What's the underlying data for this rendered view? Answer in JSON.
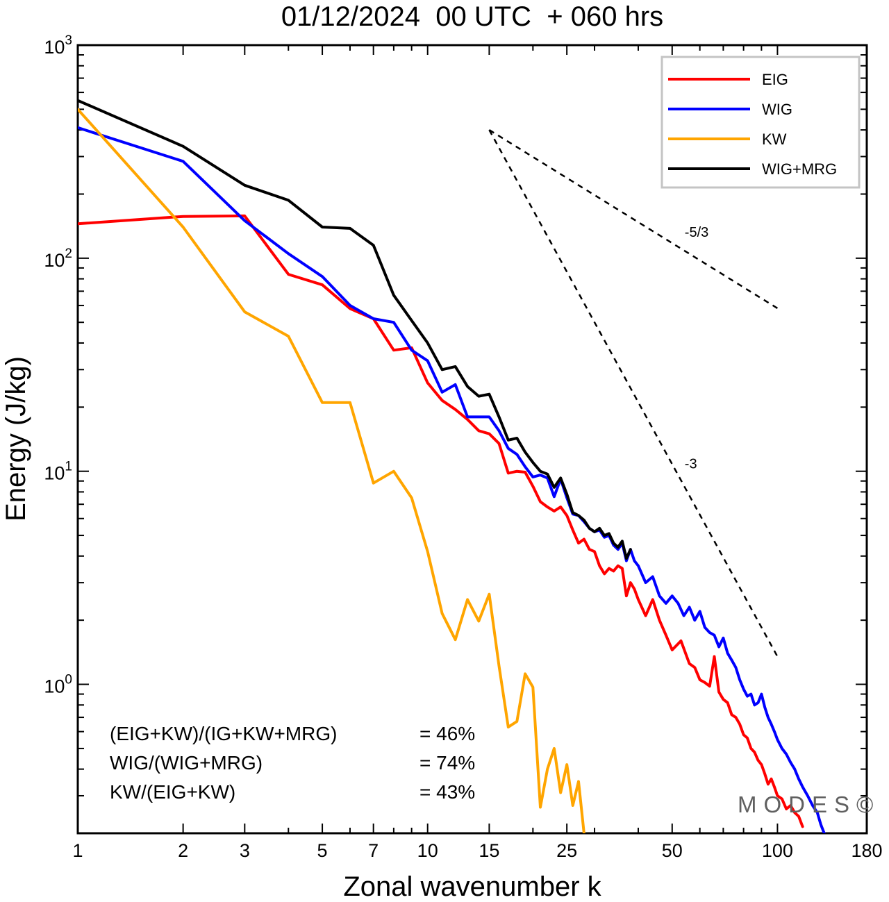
{
  "chart_data": {
    "type": "line",
    "title": "01/12/2024  00 UTC  + 060 hrs",
    "xlabel": "Zonal wavenumber k",
    "ylabel": "Energy (J/kg)",
    "x_scale": "log",
    "y_scale": "log",
    "xlim": [
      1,
      180
    ],
    "ylim": [
      0.2,
      1000
    ],
    "x_ticks": [
      {
        "value": 1,
        "label": "1"
      },
      {
        "value": 2,
        "label": "2"
      },
      {
        "value": 3,
        "label": "3"
      },
      {
        "value": 5,
        "label": "5"
      },
      {
        "value": 7,
        "label": "7"
      },
      {
        "value": 10,
        "label": "10"
      },
      {
        "value": 15,
        "label": "15"
      },
      {
        "value": 25,
        "label": "25"
      },
      {
        "value": 50,
        "label": "50"
      },
      {
        "value": 100,
        "label": "100"
      },
      {
        "value": 180,
        "label": "180"
      }
    ],
    "y_ticks": [
      {
        "value": 1,
        "base": "10",
        "exp": "0"
      },
      {
        "value": 10,
        "base": "10",
        "exp": "1"
      },
      {
        "value": 100,
        "base": "10",
        "exp": "2"
      },
      {
        "value": 1000,
        "base": "10",
        "exp": "3"
      }
    ],
    "grid": false,
    "legend_position": "top-right",
    "series": [
      {
        "name": "EIG",
        "color": "#ff0000",
        "points": [
          [
            1,
            145
          ],
          [
            2,
            157
          ],
          [
            3,
            158
          ],
          [
            4,
            84
          ],
          [
            5,
            75
          ],
          [
            6,
            58
          ],
          [
            7,
            52
          ],
          [
            8,
            37
          ],
          [
            9,
            38
          ],
          [
            10,
            26
          ],
          [
            11,
            21.5
          ],
          [
            12,
            19.5
          ],
          [
            13,
            17.5
          ],
          [
            14,
            15.5
          ],
          [
            15,
            15
          ],
          [
            16,
            13.5
          ],
          [
            17,
            9.8
          ],
          [
            18,
            10
          ],
          [
            19,
            9.9
          ],
          [
            20,
            8.5
          ],
          [
            21,
            7.2
          ],
          [
            22,
            6.8
          ],
          [
            23,
            6.5
          ],
          [
            24,
            6.8
          ],
          [
            25,
            6.2
          ],
          [
            26,
            5.3
          ],
          [
            27,
            4.6
          ],
          [
            28,
            4.8
          ],
          [
            29,
            4.3
          ],
          [
            30,
            4.2
          ],
          [
            31,
            3.6
          ],
          [
            32,
            3.3
          ],
          [
            33,
            3.5
          ],
          [
            34,
            3.4
          ],
          [
            35,
            3.6
          ],
          [
            36,
            3.5
          ],
          [
            37,
            2.6
          ],
          [
            38,
            3.0
          ],
          [
            39,
            2.8
          ],
          [
            40,
            2.5
          ],
          [
            42,
            2.1
          ],
          [
            44,
            2.5
          ],
          [
            46,
            2.0
          ],
          [
            48,
            1.7
          ],
          [
            50,
            1.45
          ],
          [
            53,
            1.6
          ],
          [
            56,
            1.25
          ],
          [
            58,
            1.2
          ],
          [
            60,
            1.05
          ],
          [
            62,
            1.02
          ],
          [
            64,
            0.98
          ],
          [
            66,
            1.35
          ],
          [
            68,
            0.92
          ],
          [
            70,
            0.85
          ],
          [
            72,
            0.82
          ],
          [
            74,
            0.72
          ],
          [
            76,
            0.7
          ],
          [
            78,
            0.65
          ],
          [
            80,
            0.58
          ],
          [
            82,
            0.56
          ],
          [
            84,
            0.5
          ],
          [
            86,
            0.48
          ],
          [
            88,
            0.44
          ],
          [
            90,
            0.42
          ],
          [
            92,
            0.38
          ],
          [
            94,
            0.34
          ],
          [
            96,
            0.36
          ],
          [
            98,
            0.33
          ],
          [
            100,
            0.3
          ],
          [
            103,
            0.29
          ],
          [
            106,
            0.26
          ],
          [
            109,
            0.27
          ],
          [
            112,
            0.25
          ],
          [
            115,
            0.24
          ],
          [
            118,
            0.215
          ]
        ]
      },
      {
        "name": "WIG",
        "color": "#0000ff",
        "points": [
          [
            1,
            410
          ],
          [
            2,
            285
          ],
          [
            3,
            150
          ],
          [
            4,
            105
          ],
          [
            5,
            82
          ],
          [
            6,
            60
          ],
          [
            7,
            52
          ],
          [
            8,
            50
          ],
          [
            9,
            37
          ],
          [
            10,
            33
          ],
          [
            11,
            23.5
          ],
          [
            12,
            25.5
          ],
          [
            13,
            18
          ],
          [
            14,
            18
          ],
          [
            15,
            18
          ],
          [
            16,
            15.5
          ],
          [
            17,
            12.8
          ],
          [
            18,
            12
          ],
          [
            19,
            10.5
          ],
          [
            20,
            9.4
          ],
          [
            21,
            9.6
          ],
          [
            22,
            9.3
          ],
          [
            23,
            7.6
          ],
          [
            24,
            9.2
          ],
          [
            25,
            7.5
          ],
          [
            26,
            6.3
          ],
          [
            27,
            6.2
          ],
          [
            28,
            5.8
          ],
          [
            29,
            5.4
          ],
          [
            30,
            5.2
          ],
          [
            31,
            5.3
          ],
          [
            32,
            4.9
          ],
          [
            33,
            5.0
          ],
          [
            34,
            4.5
          ],
          [
            35,
            4.3
          ],
          [
            36,
            4.6
          ],
          [
            37,
            3.8
          ],
          [
            38,
            4.3
          ],
          [
            39,
            3.8
          ],
          [
            40,
            3.6
          ],
          [
            42,
            3.0
          ],
          [
            44,
            3.2
          ],
          [
            46,
            2.6
          ],
          [
            48,
            2.4
          ],
          [
            50,
            2.6
          ],
          [
            52,
            2.4
          ],
          [
            54,
            2.1
          ],
          [
            56,
            2.3
          ],
          [
            58,
            2.0
          ],
          [
            60,
            2.2
          ],
          [
            62,
            1.85
          ],
          [
            64,
            1.75
          ],
          [
            66,
            1.7
          ],
          [
            68,
            1.5
          ],
          [
            70,
            1.65
          ],
          [
            72,
            1.4
          ],
          [
            74,
            1.3
          ],
          [
            76,
            1.2
          ],
          [
            78,
            1.05
          ],
          [
            80,
            0.95
          ],
          [
            82,
            0.88
          ],
          [
            84,
            0.9
          ],
          [
            86,
            0.8
          ],
          [
            88,
            0.82
          ],
          [
            90,
            0.9
          ],
          [
            92,
            0.78
          ],
          [
            94,
            0.7
          ],
          [
            96,
            0.65
          ],
          [
            98,
            0.6
          ],
          [
            100,
            0.55
          ],
          [
            103,
            0.5
          ],
          [
            106,
            0.47
          ],
          [
            109,
            0.43
          ],
          [
            112,
            0.4
          ],
          [
            115,
            0.36
          ],
          [
            118,
            0.33
          ],
          [
            122,
            0.3
          ],
          [
            126,
            0.27
          ],
          [
            130,
            0.25
          ],
          [
            133,
            0.22
          ],
          [
            136,
            0.2
          ]
        ]
      },
      {
        "name": "KW",
        "color": "#ffa500",
        "points": [
          [
            1,
            500
          ],
          [
            2,
            140
          ],
          [
            3,
            56
          ],
          [
            4,
            43
          ],
          [
            5,
            21
          ],
          [
            6,
            21
          ],
          [
            7,
            8.8
          ],
          [
            8,
            10
          ],
          [
            9,
            7.5
          ],
          [
            10,
            4.2
          ],
          [
            11,
            2.15
          ],
          [
            12,
            1.62
          ],
          [
            13,
            2.5
          ],
          [
            14,
            1.98
          ],
          [
            15,
            2.65
          ],
          [
            16,
            1.22
          ],
          [
            17,
            0.63
          ],
          [
            18,
            0.67
          ],
          [
            19,
            1.12
          ],
          [
            20,
            0.97
          ],
          [
            21,
            0.265
          ],
          [
            22,
            0.4
          ],
          [
            23,
            0.5
          ],
          [
            24,
            0.31
          ],
          [
            25,
            0.42
          ],
          [
            26,
            0.27
          ],
          [
            27,
            0.35
          ],
          [
            28,
            0.2
          ]
        ]
      },
      {
        "name": "WIG+MRG",
        "color": "#000000",
        "points": [
          [
            1,
            550
          ],
          [
            2,
            335
          ],
          [
            3,
            220
          ],
          [
            4,
            187
          ],
          [
            5,
            140
          ],
          [
            6,
            138
          ],
          [
            7,
            115
          ],
          [
            8,
            67
          ],
          [
            9,
            51
          ],
          [
            10,
            40
          ],
          [
            11,
            30
          ],
          [
            12,
            31
          ],
          [
            13,
            25
          ],
          [
            14,
            22.5
          ],
          [
            15,
            23
          ],
          [
            16,
            18
          ],
          [
            17,
            14
          ],
          [
            18,
            14.3
          ],
          [
            19,
            12.3
          ],
          [
            20,
            11
          ],
          [
            21,
            10
          ],
          [
            22,
            9.7
          ],
          [
            23,
            8.4
          ],
          [
            24,
            9.3
          ],
          [
            25,
            7.8
          ],
          [
            26,
            6.4
          ],
          [
            27,
            6.2
          ],
          [
            28,
            5.9
          ],
          [
            29,
            5.4
          ],
          [
            30,
            5.2
          ],
          [
            31,
            5.4
          ],
          [
            32,
            5.0
          ],
          [
            33,
            5.1
          ],
          [
            34,
            4.6
          ],
          [
            35,
            4.4
          ],
          [
            36,
            4.7
          ],
          [
            37,
            3.9
          ],
          [
            38,
            4.3
          ]
        ]
      }
    ],
    "reference_slopes": [
      {
        "label": "-5/3",
        "slope": -1.6667,
        "from": [
          15,
          400
        ],
        "to": [
          100,
          58.2
        ]
      },
      {
        "label": "-3",
        "slope": -3,
        "from": [
          15,
          400
        ],
        "to": [
          100,
          1.35
        ]
      }
    ],
    "ratios": [
      {
        "label": "(EIG+KW)/(IG+KW+MRG)",
        "value": "= 46%"
      },
      {
        "label": "WIG/(WIG+MRG)",
        "value": "= 74%"
      },
      {
        "label": "KW/(EIG+KW)",
        "value": "= 43%"
      }
    ],
    "watermark": "MODES©"
  }
}
